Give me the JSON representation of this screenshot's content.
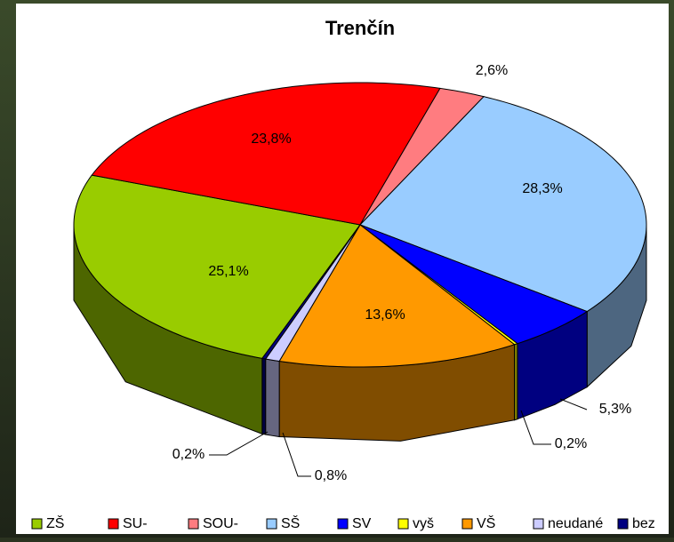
{
  "chart_data": {
    "type": "pie",
    "title": "Trenčín",
    "categories": [
      "ZŠ",
      "SU-",
      "SOU-",
      "SŠ",
      "SV",
      "vyš",
      "VŠ",
      "neudané",
      "bez"
    ],
    "values": [
      25.1,
      23.8,
      2.6,
      28.3,
      5.3,
      0.2,
      13.6,
      0.8,
      0.2
    ],
    "value_labels": [
      "25,1%",
      "23,8%",
      "2,6%",
      "28,3%",
      "5,3%",
      "0,2%",
      "13,6%",
      "0,8%",
      "0,2%"
    ],
    "colors": [
      "#99cc00",
      "#ff0000",
      "#ff7c80",
      "#99ccff",
      "#0000ff",
      "#ffff00",
      "#ff9900",
      "#ccccff",
      "#000080"
    ],
    "legend_position": "bottom"
  }
}
